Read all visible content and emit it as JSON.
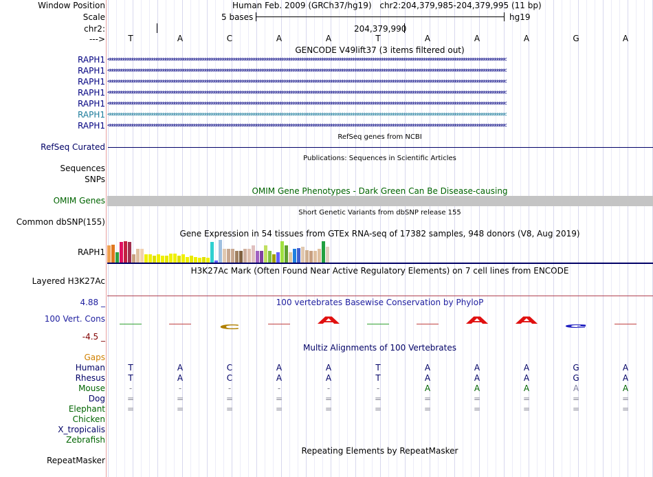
{
  "header": {
    "window_position_label": "Window Position",
    "scale_label": "Scale",
    "chrom_label": "chr2:",
    "strand_label": "--->",
    "assembly": "Human Feb. 2009 (GRCh37/hg19)",
    "position": "chr2:204,379,985-204,379,995 (11 bp)",
    "scale_text": "5 bases",
    "db": "hg19",
    "coord": "204,379,990"
  },
  "bases": [
    "T",
    "A",
    "C",
    "A",
    "A",
    "T",
    "A",
    "A",
    "A",
    "G",
    "A"
  ],
  "gencode": {
    "title": "GENCODE V49lift37 (3 items filtered out)",
    "items": [
      {
        "label": "RAPH1",
        "color": "#000080"
      },
      {
        "label": "RAPH1",
        "color": "#000080"
      },
      {
        "label": "RAPH1",
        "color": "#000080"
      },
      {
        "label": "RAPH1",
        "color": "#000080"
      },
      {
        "label": "RAPH1",
        "color": "#000080"
      },
      {
        "label": "RAPH1",
        "color": "#1a7a9a"
      },
      {
        "label": "RAPH1",
        "color": "#000080"
      }
    ]
  },
  "refseq": {
    "label": "RefSeq Curated",
    "title": "RefSeq genes from NCBI"
  },
  "publications": {
    "title": "Publications: Sequences in Scientific Articles",
    "sequences_label": "Sequences",
    "snps_label": "SNPs"
  },
  "omim": {
    "title": "OMIM Gene Phenotypes - Dark Green Can Be Disease-causing",
    "label": "OMIM Genes"
  },
  "dbsnp": {
    "title": "Short Genetic Variants from dbSNP release 155",
    "label": "Common dbSNP(155)"
  },
  "gtex": {
    "title": "Gene Expression in 54 tissues from GTEx RNA-seq of 17382 samples, 948 donors (V8, Aug 2019)",
    "label": "RAPH1",
    "values": [
      0.75,
      0.8,
      0.45,
      0.9,
      0.95,
      0.9,
      0.35,
      0.6,
      0.6,
      0.35,
      0.35,
      0.3,
      0.35,
      0.3,
      0.3,
      0.4,
      0.4,
      0.3,
      0.35,
      0.25,
      0.3,
      0.25,
      0.2,
      0.25,
      0.2,
      0.9,
      0.1,
      1.0,
      0.6,
      0.6,
      0.6,
      0.5,
      0.5,
      0.6,
      0.6,
      0.75,
      0.5,
      0.5,
      0.75,
      0.5,
      0.35,
      0.45,
      0.95,
      0.75,
      0.45,
      0.6,
      0.65,
      0.7,
      0.55,
      0.5,
      0.5,
      0.6,
      0.95,
      0.7
    ],
    "colors": [
      "#f0a050",
      "#e07820",
      "#30a040",
      "#e01060",
      "#c02040",
      "#a03050",
      "#c8a080",
      "#e0c0a0",
      "#f0d0b0",
      "#f0f000",
      "#f0f000",
      "#e0e000",
      "#f0f000",
      "#f0f000",
      "#e8e800",
      "#f0f000",
      "#f0f000",
      "#e0e000",
      "#f0f000",
      "#f0f000",
      "#e8e800",
      "#f0f000",
      "#f0f000",
      "#e0e000",
      "#f0f000",
      "#30d0d0",
      "#6060ff",
      "#a0c0e0",
      "#e0c8b0",
      "#c8a890",
      "#c8a890",
      "#a08060",
      "#806040",
      "#d0b0a0",
      "#e0c0b0",
      "#e0c0c0",
      "#a060c0",
      "#8040a0",
      "#c0e060",
      "#80c040",
      "#a0a000",
      "#6060ff",
      "#a0e040",
      "#60a030",
      "#e0c8a0",
      "#2080e0",
      "#4060d0",
      "#e0c8b0",
      "#d0b090",
      "#c8a080",
      "#e0c0a0",
      "#e0c0a0",
      "#20a040",
      "#e0d0c0"
    ]
  },
  "h3k27ac": {
    "title": "H3K27Ac Mark (Often Found Near Active Regulatory Elements) on 7 cell lines from ENCODE",
    "label": "Layered H3K27Ac"
  },
  "cons": {
    "title": "100 vertebrates Basewise Conservation by PhyloP",
    "label": "100 Vert. Cons",
    "ymax": "4.88 _",
    "ymin": "-4.5 _",
    "values": [
      0.05,
      -0.1,
      -0.9,
      -0.1,
      1.3,
      0.05,
      -0.05,
      1.3,
      1.3,
      -0.6,
      -0.1
    ],
    "colors": {
      "pos": "#e01010",
      "neg": "#b08000",
      "zero": "#30a030"
    }
  },
  "multiz": {
    "title": "Multiz Alignments of 100 Vertebrates",
    "gaps_label": "Gaps",
    "species": [
      {
        "name": "Human",
        "color": "#000066",
        "seq": [
          "T",
          "A",
          "C",
          "A",
          "A",
          "T",
          "A",
          "A",
          "A",
          "G",
          "A"
        ]
      },
      {
        "name": "Rhesus",
        "color": "#000066",
        "seq": [
          "T",
          "A",
          "C",
          "A",
          "A",
          "T",
          "A",
          "A",
          "A",
          "G",
          "A"
        ]
      },
      {
        "name": "Mouse",
        "color": "#006400",
        "seq": [
          "-",
          "-",
          "-",
          "-",
          "-",
          "-",
          "A",
          "A",
          "A",
          "A",
          "A"
        ]
      },
      {
        "name": "Dog",
        "color": "#000066",
        "seq": [
          "=",
          "=",
          "=",
          "=",
          "=",
          "=",
          "=",
          "=",
          "=",
          "=",
          "="
        ]
      },
      {
        "name": "Elephant",
        "color": "#006400",
        "seq": [
          "=",
          "=",
          "=",
          "=",
          "=",
          "=",
          "=",
          "=",
          "=",
          "=",
          "="
        ]
      },
      {
        "name": "Chicken",
        "color": "#006400",
        "seq": [
          "",
          "",
          "",
          "",
          "",
          "",
          "",
          "",
          "",
          "",
          ""
        ]
      },
      {
        "name": "X_tropicalis",
        "color": "#000066",
        "seq": [
          "",
          "",
          "",
          "",
          "",
          "",
          "",
          "",
          "",
          "",
          ""
        ]
      },
      {
        "name": "Zebrafish",
        "color": "#006400",
        "seq": [
          "",
          "",
          "",
          "",
          "",
          "",
          "",
          "",
          "",
          "",
          ""
        ]
      }
    ]
  },
  "repeatmasker": {
    "title": "Repeating Elements by RepeatMasker",
    "label": "RepeatMasker"
  }
}
